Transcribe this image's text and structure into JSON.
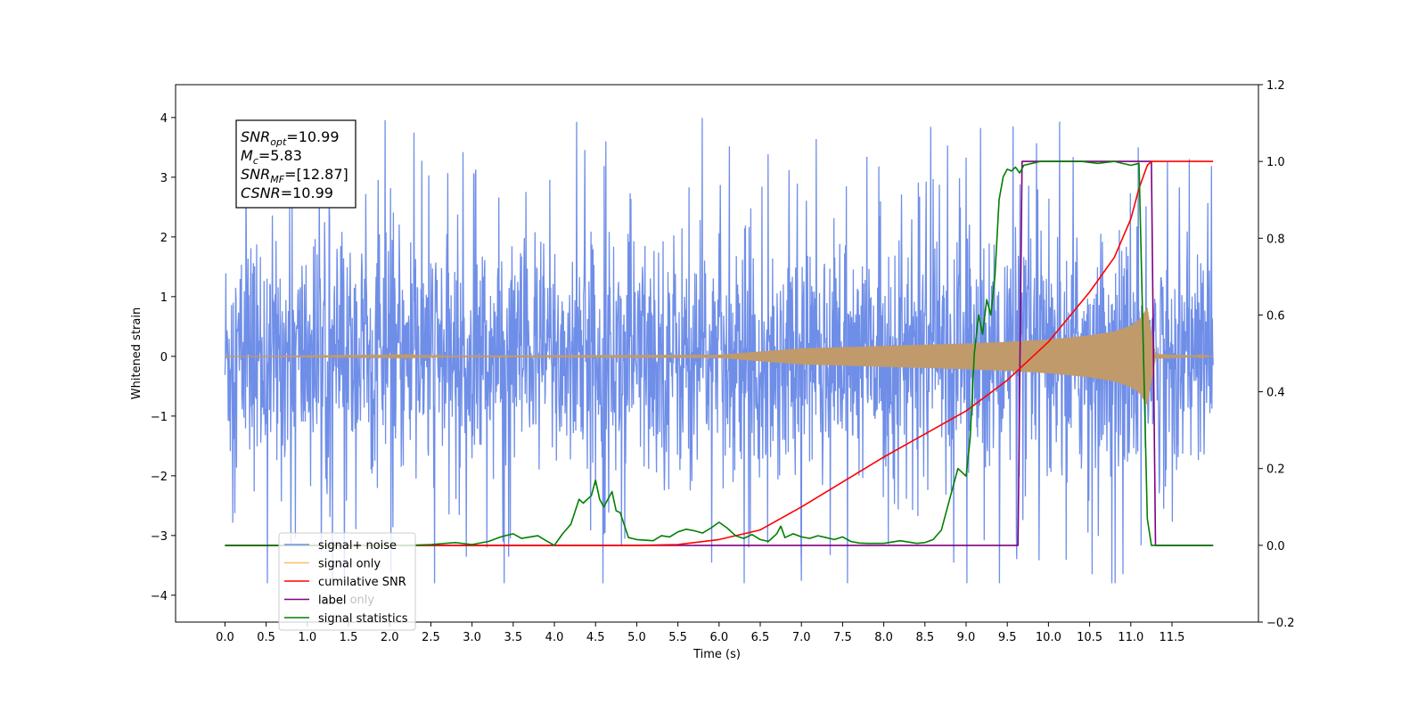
{
  "chart_data": {
    "type": "line",
    "xlabel": "Time (s)",
    "ylabel": "Whitened strain",
    "xlim": [
      -0.6,
      12.55
    ],
    "ylim": [
      -4.45,
      4.55
    ],
    "ylim_right": [
      -0.2,
      1.2
    ],
    "x_ticks": [
      0.0,
      0.5,
      1.0,
      1.5,
      2.0,
      2.5,
      3.0,
      3.5,
      4.0,
      4.5,
      5.0,
      5.5,
      6.0,
      6.5,
      7.0,
      7.5,
      8.0,
      8.5,
      9.0,
      9.5,
      10.0,
      10.5,
      11.0,
      11.5
    ],
    "x_tick_labels": [
      "0.0",
      "0.5",
      "1.0",
      "1.5",
      "2.0",
      "2.5",
      "3.0",
      "3.5",
      "4.0",
      "4.5",
      "5.0",
      "5.5",
      "6.0",
      "6.5",
      "7.0",
      "7.5",
      "8.0",
      "8.5",
      "9.0",
      "9.5",
      "10.0",
      "10.5",
      "11.0",
      "11.5"
    ],
    "y_ticks": [
      -4,
      -3,
      -2,
      -1,
      0,
      1,
      2,
      3,
      4
    ],
    "y_tick_labels": [
      "−4",
      "−3",
      "−2",
      "−1",
      "0",
      "1",
      "2",
      "3",
      "4"
    ],
    "y_right_ticks": [
      -0.2,
      0.0,
      0.2,
      0.4,
      0.6,
      0.8,
      1.0,
      1.2
    ],
    "y_right_tick_labels": [
      "−0.2",
      "0.0",
      "0.2",
      "0.4",
      "0.6",
      "0.8",
      "1.0",
      "1.2"
    ],
    "grid": false,
    "legend_position": "bottom-left",
    "annotation": {
      "lines": [
        {
          "sym": "SNR",
          "sub": "opt",
          "value": "=10.99"
        },
        {
          "sym": "M",
          "sub": "c",
          "value": "=5.83"
        },
        {
          "sym": "SNR",
          "sub": "MF",
          "value": "=[12.87]"
        },
        {
          "sym": "CSNR",
          "sub": "",
          "value": "=10.99"
        }
      ]
    },
    "series": [
      {
        "name": "signal+ noise",
        "axis": "left",
        "color": "#6f8ee8",
        "description_values": {
          "t_start": 0.0,
          "t_end": 12.0,
          "typical_peak_range": [
            -3.8,
            4.1
          ]
        }
      },
      {
        "name": "signal only",
        "axis": "left",
        "color": "#f5c06a",
        "envelope": {
          "t": [
            0.0,
            6.0,
            7.0,
            8.0,
            9.0,
            9.5,
            10.0,
            10.5,
            10.8,
            11.0,
            11.1,
            11.2,
            11.25,
            11.3,
            12.0
          ],
          "amp": [
            0.0,
            0.02,
            0.1,
            0.13,
            0.16,
            0.18,
            0.21,
            0.26,
            0.31,
            0.38,
            0.45,
            0.6,
            0.3,
            0.03,
            0.0
          ]
        }
      },
      {
        "name": "cumilative SNR",
        "axis": "right",
        "color": "#ff0000",
        "x": [
          0.0,
          5.0,
          5.5,
          6.0,
          6.5,
          7.0,
          7.5,
          8.0,
          8.5,
          9.0,
          9.5,
          10.0,
          10.5,
          10.8,
          11.0,
          11.1,
          11.2,
          11.25,
          11.3,
          11.5,
          11.8,
          12.0
        ],
        "y": [
          0.0,
          0.0,
          0.002,
          0.015,
          0.04,
          0.1,
          0.165,
          0.23,
          0.29,
          0.35,
          0.43,
          0.53,
          0.66,
          0.75,
          0.85,
          0.93,
          0.99,
          1.0,
          1.0,
          1.0,
          1.0,
          1.0
        ]
      },
      {
        "name": "label",
        "axis": "right",
        "color": "#800080",
        "x": [
          0.0,
          9.63,
          9.68,
          11.2,
          11.25,
          11.3,
          12.0
        ],
        "y": [
          0.0,
          0.0,
          1.0,
          1.0,
          1.0,
          0.0,
          0.0
        ]
      },
      {
        "name": "label only",
        "axis": "right",
        "color": "#9400d3",
        "hidden_in_plot": true
      },
      {
        "name": "signal statistics",
        "axis": "right",
        "color": "#008000",
        "x": [
          0.0,
          2.2,
          2.5,
          2.8,
          3.0,
          3.2,
          3.35,
          3.5,
          3.6,
          3.8,
          3.9,
          4.0,
          4.1,
          4.2,
          4.3,
          4.35,
          4.45,
          4.5,
          4.55,
          4.6,
          4.7,
          4.75,
          4.8,
          4.9,
          5.0,
          5.2,
          5.3,
          5.4,
          5.5,
          5.6,
          5.7,
          5.8,
          5.9,
          6.0,
          6.1,
          6.2,
          6.3,
          6.4,
          6.5,
          6.6,
          6.7,
          6.75,
          6.8,
          6.9,
          7.0,
          7.1,
          7.2,
          7.3,
          7.4,
          7.5,
          7.6,
          7.7,
          7.8,
          8.0,
          8.2,
          8.4,
          8.5,
          8.6,
          8.7,
          8.8,
          8.9,
          9.0,
          9.05,
          9.1,
          9.15,
          9.2,
          9.25,
          9.3,
          9.35,
          9.4,
          9.45,
          9.5,
          9.55,
          9.6,
          9.65,
          9.7,
          9.8,
          9.9,
          10.0,
          10.2,
          10.4,
          10.6,
          10.8,
          11.0,
          11.1,
          11.2,
          11.25,
          11.3,
          11.4,
          11.8,
          12.0
        ],
        "y": [
          0.0,
          0.0,
          0.002,
          0.007,
          0.002,
          0.01,
          0.022,
          0.03,
          0.018,
          0.025,
          0.012,
          0.0,
          0.03,
          0.055,
          0.12,
          0.11,
          0.13,
          0.17,
          0.12,
          0.1,
          0.14,
          0.09,
          0.085,
          0.02,
          0.015,
          0.012,
          0.025,
          0.022,
          0.035,
          0.042,
          0.038,
          0.032,
          0.045,
          0.06,
          0.045,
          0.025,
          0.018,
          0.028,
          0.015,
          0.01,
          0.03,
          0.05,
          0.02,
          0.03,
          0.022,
          0.018,
          0.025,
          0.02,
          0.015,
          0.022,
          0.01,
          0.006,
          0.005,
          0.005,
          0.012,
          0.005,
          0.007,
          0.015,
          0.04,
          0.12,
          0.2,
          0.18,
          0.28,
          0.5,
          0.6,
          0.55,
          0.64,
          0.6,
          0.7,
          0.9,
          0.96,
          0.98,
          0.975,
          0.985,
          0.97,
          0.99,
          0.995,
          1.0,
          1.0,
          1.0,
          1.0,
          0.995,
          1.0,
          0.99,
          0.995,
          0.07,
          0.0,
          0.0,
          0.0,
          0.0,
          0.0
        ]
      }
    ]
  }
}
